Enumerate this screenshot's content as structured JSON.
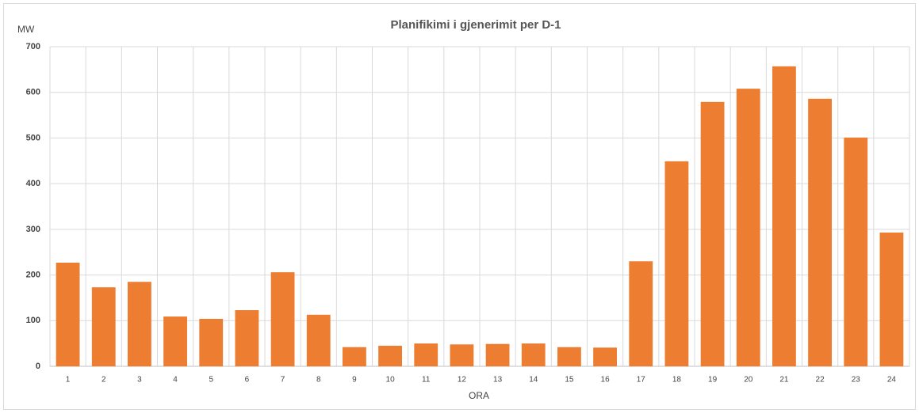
{
  "chart_data": {
    "type": "bar",
    "title": "Planifikimi i gjenerimit per D-1",
    "y_label": "MW",
    "x_label": "ORA",
    "categories": [
      "1",
      "2",
      "3",
      "4",
      "5",
      "6",
      "7",
      "8",
      "9",
      "10",
      "11",
      "12",
      "13",
      "14",
      "15",
      "16",
      "17",
      "18",
      "19",
      "20",
      "21",
      "22",
      "23",
      "24"
    ],
    "values": [
      227,
      173,
      185,
      109,
      104,
      123,
      206,
      113,
      42,
      45,
      50,
      48,
      49,
      50,
      42,
      41,
      230,
      449,
      579,
      608,
      657,
      586,
      501,
      293
    ],
    "color": "#ed7d31",
    "ylim": [
      0,
      700
    ],
    "yticks": [
      0,
      100,
      200,
      300,
      400,
      500,
      600,
      700
    ],
    "grid": true
  }
}
